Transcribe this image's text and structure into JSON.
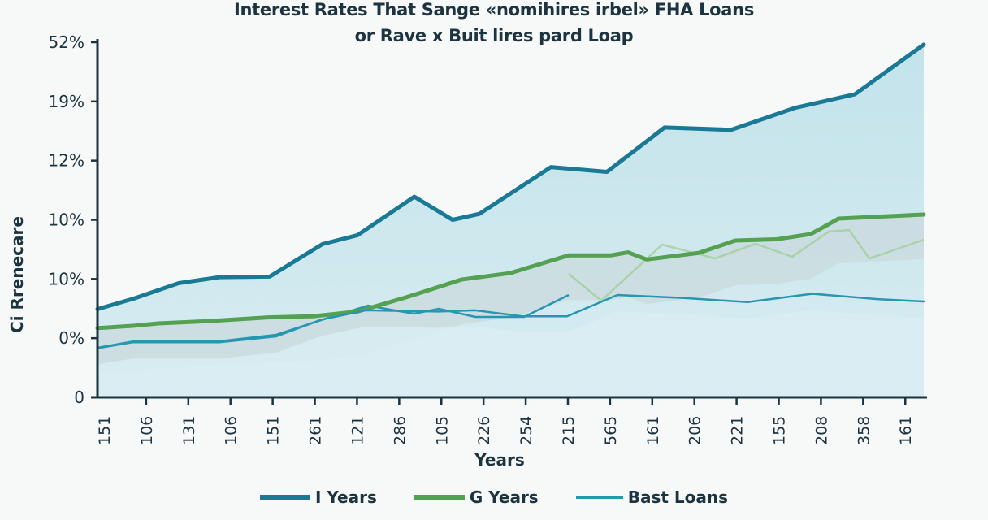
{
  "chart_data": {
    "type": "area",
    "title": "Interest Rates That Sange «nomihires irbel» FHA Loans",
    "subtitle": "or Rave x Buit lires pard Loap",
    "xlabel": "Years",
    "ylabel": "Ci Rrenecare",
    "yticks": [
      "0",
      "0%",
      "10%",
      "10%",
      "12%",
      "19%",
      "52%"
    ],
    "ylim": [
      0,
      6
    ],
    "categories": [
      "151",
      "106",
      "131",
      "106",
      "151",
      "261",
      "121",
      "286",
      "105",
      "226",
      "254",
      "215",
      "565",
      "161",
      "206",
      "221",
      "155",
      "208",
      "358",
      "161"
    ],
    "grid": false,
    "legend_position": "bottom",
    "series": [
      {
        "name": "I Years",
        "color": "#1a7a96",
        "x": [
          120,
          165,
          220,
          270,
          332,
          397,
          440,
          510,
          557,
          590,
          678,
          747,
          818,
          900,
          978,
          1052,
          1137
        ],
        "values": [
          1.49,
          1.67,
          1.93,
          2.03,
          2.04,
          2.59,
          2.74,
          3.39,
          3.0,
          3.1,
          3.89,
          3.81,
          4.56,
          4.52,
          4.89,
          5.12,
          5.96
        ]
      },
      {
        "name": "G Years",
        "color": "#54a152",
        "x": [
          120,
          165,
          195,
          260,
          330,
          385,
          440,
          500,
          568,
          628,
          700,
          752,
          773,
          796,
          860,
          905,
          955,
          998,
          1014,
          1032,
          1137
        ],
        "values": [
          1.17,
          1.21,
          1.25,
          1.29,
          1.35,
          1.37,
          1.45,
          1.69,
          1.99,
          2.1,
          2.4,
          2.4,
          2.45,
          2.33,
          2.44,
          2.65,
          2.67,
          2.76,
          2.88,
          3.02,
          3.09
        ]
      },
      {
        "name": "Bast Loans",
        "color": "#2896b0",
        "x": [
          120,
          163,
          270,
          340,
          395,
          450,
          540,
          585,
          643,
          698,
          760,
          840,
          920,
          1000,
          1080,
          1137
        ],
        "values": [
          0.83,
          0.93,
          0.93,
          1.03,
          1.31,
          1.47,
          1.45,
          1.47,
          1.37,
          1.37,
          1.73,
          1.68,
          1.61,
          1.75,
          1.66,
          1.62
        ]
      }
    ]
  },
  "legend": {
    "items": [
      {
        "label": "I Years",
        "color": "#1a7a96"
      },
      {
        "label": "G Years",
        "color": "#54a152"
      },
      {
        "label": "Bast Loans",
        "color": "#2896b0"
      }
    ]
  }
}
